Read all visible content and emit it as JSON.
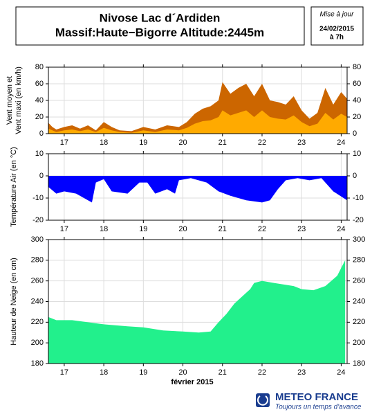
{
  "header": {
    "title_lines": [
      "Nivose Lac d´Ardiden",
      "Massif:Haute−Bigorre Altitude:2445m"
    ],
    "update": [
      "Mise à jour",
      "24/02/2015",
      "à 7h"
    ]
  },
  "logo": {
    "name": "METEO FRANCE",
    "tagline": "Toujours un temps d'avance"
  },
  "chart_data": [
    {
      "type": "area",
      "ylabel": [
        "Vent moyen et",
        "Vent maxi (en km/h)"
      ],
      "xlim": [
        16.6,
        24.15
      ],
      "xticks": [
        17,
        18,
        19,
        20,
        21,
        22,
        23,
        24
      ],
      "ylim": [
        0,
        80
      ],
      "yticks": [
        0,
        20,
        40,
        60,
        80
      ],
      "grid": true,
      "x": [
        16.6,
        16.7,
        16.8,
        17.0,
        17.2,
        17.4,
        17.6,
        17.8,
        18.0,
        18.2,
        18.4,
        18.7,
        19.0,
        19.3,
        19.6,
        19.9,
        20.1,
        20.3,
        20.5,
        20.7,
        20.9,
        21.0,
        21.2,
        21.4,
        21.6,
        21.8,
        22.0,
        22.2,
        22.4,
        22.6,
        22.8,
        23.0,
        23.2,
        23.4,
        23.6,
        23.8,
        24.0,
        24.15
      ],
      "series": [
        {
          "name": "Vent maxi",
          "color": "#cc6600",
          "values": [
            13,
            8,
            5,
            8,
            10,
            6,
            10,
            4,
            14,
            8,
            4,
            3,
            8,
            5,
            10,
            8,
            14,
            24,
            30,
            33,
            40,
            62,
            48,
            55,
            60,
            45,
            60,
            40,
            38,
            35,
            45,
            28,
            18,
            25,
            55,
            35,
            50,
            42
          ]
        },
        {
          "name": "Vent moyen",
          "color": "#ffaa00",
          "values": [
            6,
            4,
            2,
            4,
            5,
            3,
            5,
            2,
            7,
            4,
            2,
            1,
            4,
            2,
            5,
            4,
            7,
            12,
            15,
            16,
            20,
            28,
            22,
            25,
            28,
            20,
            28,
            20,
            18,
            17,
            22,
            14,
            9,
            12,
            25,
            17,
            24,
            20
          ]
        }
      ]
    },
    {
      "type": "area",
      "ylabel": [
        "Température Air (en °C)"
      ],
      "xlim": [
        16.6,
        24.15
      ],
      "xticks": [
        17,
        18,
        19,
        20,
        21,
        22,
        23,
        24
      ],
      "ylim": [
        -20,
        10
      ],
      "yticks": [
        -20,
        -10,
        0,
        10
      ],
      "grid": true,
      "x": [
        16.6,
        16.8,
        17.0,
        17.3,
        17.6,
        17.7,
        17.8,
        18.0,
        18.2,
        18.6,
        18.9,
        19.1,
        19.3,
        19.6,
        19.8,
        19.9,
        20.2,
        20.6,
        20.9,
        21.2,
        21.6,
        22.0,
        22.2,
        22.4,
        22.6,
        22.9,
        23.2,
        23.5,
        23.8,
        24.15
      ],
      "series": [
        {
          "name": "Température",
          "color": "#0000ff",
          "values": [
            -5,
            -8,
            -7,
            -8,
            -11,
            -12,
            -3,
            -1.5,
            -7,
            -8,
            -3,
            -3,
            -8,
            -6,
            -8,
            -2,
            -1,
            -3,
            -7,
            -9,
            -11,
            -12,
            -11,
            -6,
            -2,
            -1,
            -2,
            -1,
            -7,
            -11
          ]
        }
      ]
    },
    {
      "type": "area",
      "ylabel": [
        "Hauteur de Neige (en cm)"
      ],
      "xlabel": "février 2015",
      "xlim": [
        16.6,
        24.15
      ],
      "xticks": [
        17,
        18,
        19,
        20,
        21,
        22,
        23,
        24
      ],
      "ylim": [
        180,
        300
      ],
      "yticks": [
        180,
        200,
        220,
        240,
        260,
        280,
        300
      ],
      "grid": true,
      "x": [
        16.6,
        16.8,
        17.2,
        17.6,
        18.0,
        18.6,
        19.0,
        19.5,
        20.0,
        20.4,
        20.7,
        20.9,
        21.1,
        21.3,
        21.5,
        21.7,
        21.8,
        22.0,
        22.3,
        22.8,
        23.0,
        23.3,
        23.6,
        23.9,
        24.1
      ],
      "series": [
        {
          "name": "Hauteur de neige",
          "color": "#22f08c",
          "values": [
            225,
            222,
            222,
            220,
            218,
            216,
            215,
            212,
            211,
            210,
            211,
            220,
            228,
            238,
            245,
            252,
            258,
            260,
            258,
            255,
            252,
            251,
            255,
            265,
            280
          ]
        }
      ]
    }
  ]
}
